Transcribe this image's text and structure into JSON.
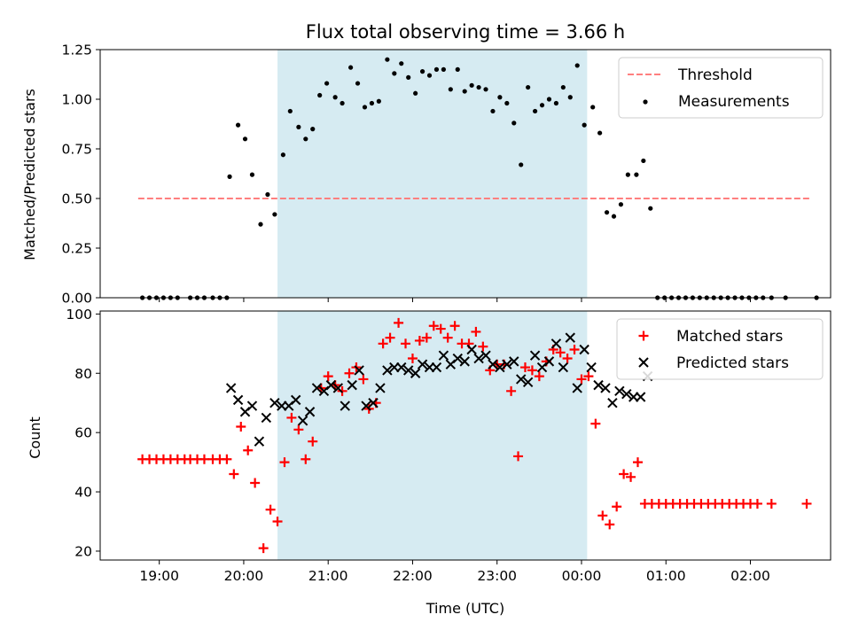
{
  "chart_data": {
    "type": "scatter",
    "title": "Flux total observing time = 3.66 h",
    "shaded_interval": {
      "start": "20:24",
      "end": "00:04",
      "color": "#add8e6"
    },
    "x_axis": {
      "label": "Time (UTC)",
      "range": [
        "18:18",
        "02:57"
      ],
      "tick_labels": [
        "19:00",
        "20:00",
        "21:00",
        "22:00",
        "23:00",
        "00:00",
        "01:00",
        "02:00"
      ]
    },
    "top_panel": {
      "ylabel": "Matched/Predicted stars",
      "ylim": [
        0,
        1.25
      ],
      "yticks": [
        "0.00",
        "0.25",
        "0.50",
        "0.75",
        "1.00",
        "1.25"
      ],
      "legend": {
        "position": "upper right",
        "entries": [
          "Threshold",
          "Measurements"
        ]
      },
      "threshold": {
        "name": "Threshold",
        "value": 0.5,
        "range": [
          "18:45",
          "02:43"
        ],
        "color": "#ff7f7f",
        "style": "dashed"
      },
      "measurements": {
        "name": "Measurements",
        "color": "#000000",
        "points": [
          [
            "18:48",
            0
          ],
          [
            "18:53",
            0
          ],
          [
            "18:58",
            0
          ],
          [
            "19:03",
            0
          ],
          [
            "19:08",
            0
          ],
          [
            "19:13",
            0
          ],
          [
            "19:22",
            0
          ],
          [
            "19:27",
            0
          ],
          [
            "19:32",
            0
          ],
          [
            "19:38",
            0
          ],
          [
            "19:43",
            0
          ],
          [
            "19:48",
            0
          ],
          [
            "19:50",
            0.61
          ],
          [
            "19:56",
            0.87
          ],
          [
            "20:01",
            0.8
          ],
          [
            "20:06",
            0.62
          ],
          [
            "20:12",
            0.37
          ],
          [
            "20:17",
            0.52
          ],
          [
            "20:22",
            0.42
          ],
          [
            "20:28",
            0.72
          ],
          [
            "20:33",
            0.94
          ],
          [
            "20:39",
            0.86
          ],
          [
            "20:44",
            0.8
          ],
          [
            "20:49",
            0.85
          ],
          [
            "20:54",
            1.02
          ],
          [
            "20:59",
            1.08
          ],
          [
            "21:05",
            1.01
          ],
          [
            "21:10",
            0.98
          ],
          [
            "21:16",
            1.16
          ],
          [
            "21:21",
            1.08
          ],
          [
            "21:26",
            0.96
          ],
          [
            "21:31",
            0.98
          ],
          [
            "21:36",
            0.99
          ],
          [
            "21:42",
            1.2
          ],
          [
            "21:47",
            1.13
          ],
          [
            "21:52",
            1.18
          ],
          [
            "21:57",
            1.11
          ],
          [
            "22:02",
            1.03
          ],
          [
            "22:07",
            1.14
          ],
          [
            "22:12",
            1.12
          ],
          [
            "22:17",
            1.15
          ],
          [
            "22:22",
            1.15
          ],
          [
            "22:27",
            1.05
          ],
          [
            "22:32",
            1.15
          ],
          [
            "22:37",
            1.04
          ],
          [
            "22:42",
            1.07
          ],
          [
            "22:47",
            1.06
          ],
          [
            "22:52",
            1.05
          ],
          [
            "22:57",
            0.94
          ],
          [
            "23:02",
            1.01
          ],
          [
            "23:07",
            0.98
          ],
          [
            "23:12",
            0.88
          ],
          [
            "23:17",
            0.67
          ],
          [
            "23:22",
            1.06
          ],
          [
            "23:27",
            0.94
          ],
          [
            "23:32",
            0.97
          ],
          [
            "23:37",
            1.0
          ],
          [
            "23:42",
            0.98
          ],
          [
            "23:47",
            1.06
          ],
          [
            "23:52",
            1.01
          ],
          [
            "23:57",
            1.17
          ],
          [
            "00:02",
            0.87
          ],
          [
            "00:08",
            0.96
          ],
          [
            "00:13",
            0.83
          ],
          [
            "00:18",
            0.43
          ],
          [
            "00:23",
            0.41
          ],
          [
            "00:28",
            0.47
          ],
          [
            "00:33",
            0.62
          ],
          [
            "00:39",
            0.62
          ],
          [
            "00:44",
            0.69
          ],
          [
            "00:49",
            0.45
          ],
          [
            "00:54",
            0
          ],
          [
            "00:59",
            0
          ],
          [
            "01:04",
            0
          ],
          [
            "01:09",
            0
          ],
          [
            "01:14",
            0
          ],
          [
            "01:19",
            0
          ],
          [
            "01:24",
            0
          ],
          [
            "01:29",
            0
          ],
          [
            "01:34",
            0
          ],
          [
            "01:39",
            0
          ],
          [
            "01:44",
            0
          ],
          [
            "01:49",
            0
          ],
          [
            "01:54",
            0
          ],
          [
            "01:59",
            0
          ],
          [
            "02:04",
            0
          ],
          [
            "02:09",
            0
          ],
          [
            "02:15",
            0
          ],
          [
            "02:25",
            0
          ],
          [
            "02:47",
            0
          ]
        ]
      }
    },
    "bottom_panel": {
      "ylabel": "Count",
      "ylim": [
        17,
        101
      ],
      "yticks": [
        "20",
        "40",
        "60",
        "80",
        "100"
      ],
      "legend": {
        "position": "upper right",
        "entries": [
          "Matched stars",
          "Predicted stars"
        ]
      },
      "series": [
        {
          "name": "Matched stars",
          "marker": "plus",
          "color": "#ff0000",
          "points": [
            [
              "18:48",
              51
            ],
            [
              "18:53",
              51
            ],
            [
              "18:58",
              51
            ],
            [
              "19:03",
              51
            ],
            [
              "19:08",
              51
            ],
            [
              "19:13",
              51
            ],
            [
              "19:18",
              51
            ],
            [
              "19:22",
              51
            ],
            [
              "19:27",
              51
            ],
            [
              "19:32",
              51
            ],
            [
              "19:38",
              51
            ],
            [
              "19:43",
              51
            ],
            [
              "19:48",
              51
            ],
            [
              "19:53",
              46
            ],
            [
              "19:58",
              62
            ],
            [
              "20:03",
              54
            ],
            [
              "20:08",
              43
            ],
            [
              "20:14",
              21
            ],
            [
              "20:19",
              34
            ],
            [
              "20:24",
              30
            ],
            [
              "20:29",
              50
            ],
            [
              "20:34",
              65
            ],
            [
              "20:39",
              61
            ],
            [
              "20:44",
              51
            ],
            [
              "20:49",
              57
            ],
            [
              "20:55",
              75
            ],
            [
              "21:00",
              79
            ],
            [
              "21:05",
              76
            ],
            [
              "21:10",
              74
            ],
            [
              "21:15",
              80
            ],
            [
              "21:20",
              82
            ],
            [
              "21:25",
              78
            ],
            [
              "21:29",
              68
            ],
            [
              "21:34",
              70
            ],
            [
              "21:39",
              90
            ],
            [
              "21:44",
              92
            ],
            [
              "21:50",
              97
            ],
            [
              "21:55",
              90
            ],
            [
              "22:00",
              85
            ],
            [
              "22:05",
              91
            ],
            [
              "22:10",
              92
            ],
            [
              "22:15",
              96
            ],
            [
              "22:20",
              95
            ],
            [
              "22:25",
              92
            ],
            [
              "22:30",
              96
            ],
            [
              "22:35",
              90
            ],
            [
              "22:40",
              90
            ],
            [
              "22:45",
              94
            ],
            [
              "22:50",
              89
            ],
            [
              "22:55",
              81
            ],
            [
              "23:00",
              83
            ],
            [
              "23:05",
              83
            ],
            [
              "23:10",
              74
            ],
            [
              "23:15",
              52
            ],
            [
              "23:20",
              82
            ],
            [
              "23:25",
              81
            ],
            [
              "23:30",
              79
            ],
            [
              "23:35",
              84
            ],
            [
              "23:40",
              88
            ],
            [
              "23:45",
              87
            ],
            [
              "23:50",
              85
            ],
            [
              "23:55",
              88
            ],
            [
              "00:00",
              78
            ],
            [
              "00:05",
              79
            ],
            [
              "00:10",
              63
            ],
            [
              "00:15",
              32
            ],
            [
              "00:20",
              29
            ],
            [
              "00:25",
              35
            ],
            [
              "00:30",
              46
            ],
            [
              "00:35",
              45
            ],
            [
              "00:40",
              50
            ],
            [
              "00:45",
              36
            ],
            [
              "00:50",
              36
            ],
            [
              "00:55",
              36
            ],
            [
              "01:00",
              36
            ],
            [
              "01:05",
              36
            ],
            [
              "01:10",
              36
            ],
            [
              "01:15",
              36
            ],
            [
              "01:20",
              36
            ],
            [
              "01:25",
              36
            ],
            [
              "01:30",
              36
            ],
            [
              "01:35",
              36
            ],
            [
              "01:40",
              36
            ],
            [
              "01:45",
              36
            ],
            [
              "01:50",
              36
            ],
            [
              "01:55",
              36
            ],
            [
              "02:00",
              36
            ],
            [
              "02:05",
              36
            ],
            [
              "02:15",
              36
            ],
            [
              "02:40",
              36
            ]
          ]
        },
        {
          "name": "Predicted stars",
          "marker": "x",
          "color": "#000000",
          "points": [
            [
              "19:51",
              75
            ],
            [
              "19:56",
              71
            ],
            [
              "20:01",
              67
            ],
            [
              "20:06",
              69
            ],
            [
              "20:11",
              57
            ],
            [
              "20:16",
              65
            ],
            [
              "20:22",
              70
            ],
            [
              "20:27",
              69
            ],
            [
              "20:32",
              69
            ],
            [
              "20:37",
              71
            ],
            [
              "20:42",
              64
            ],
            [
              "20:47",
              67
            ],
            [
              "20:52",
              75
            ],
            [
              "20:57",
              74
            ],
            [
              "21:02",
              76
            ],
            [
              "21:07",
              75
            ],
            [
              "21:12",
              69
            ],
            [
              "21:17",
              76
            ],
            [
              "21:22",
              81
            ],
            [
              "21:27",
              69
            ],
            [
              "21:32",
              70
            ],
            [
              "21:37",
              75
            ],
            [
              "21:42",
              81
            ],
            [
              "21:47",
              82
            ],
            [
              "21:52",
              82
            ],
            [
              "21:57",
              81
            ],
            [
              "22:02",
              80
            ],
            [
              "22:07",
              83
            ],
            [
              "22:12",
              82
            ],
            [
              "22:17",
              82
            ],
            [
              "22:22",
              86
            ],
            [
              "22:27",
              83
            ],
            [
              "22:32",
              85
            ],
            [
              "22:37",
              84
            ],
            [
              "22:42",
              88
            ],
            [
              "22:47",
              85
            ],
            [
              "22:52",
              86
            ],
            [
              "22:57",
              83
            ],
            [
              "23:02",
              82
            ],
            [
              "23:07",
              83
            ],
            [
              "23:12",
              84
            ],
            [
              "23:17",
              78
            ],
            [
              "23:22",
              77
            ],
            [
              "23:27",
              86
            ],
            [
              "23:32",
              82
            ],
            [
              "23:37",
              84
            ],
            [
              "23:42",
              90
            ],
            [
              "23:47",
              82
            ],
            [
              "23:52",
              92
            ],
            [
              "23:57",
              75
            ],
            [
              "00:02",
              88
            ],
            [
              "00:07",
              82
            ],
            [
              "00:12",
              76
            ],
            [
              "00:17",
              75
            ],
            [
              "00:22",
              70
            ],
            [
              "00:27",
              74
            ],
            [
              "00:32",
              73
            ],
            [
              "00:37",
              72
            ],
            [
              "00:42",
              72
            ],
            [
              "00:47",
              79
            ]
          ]
        }
      ]
    }
  }
}
